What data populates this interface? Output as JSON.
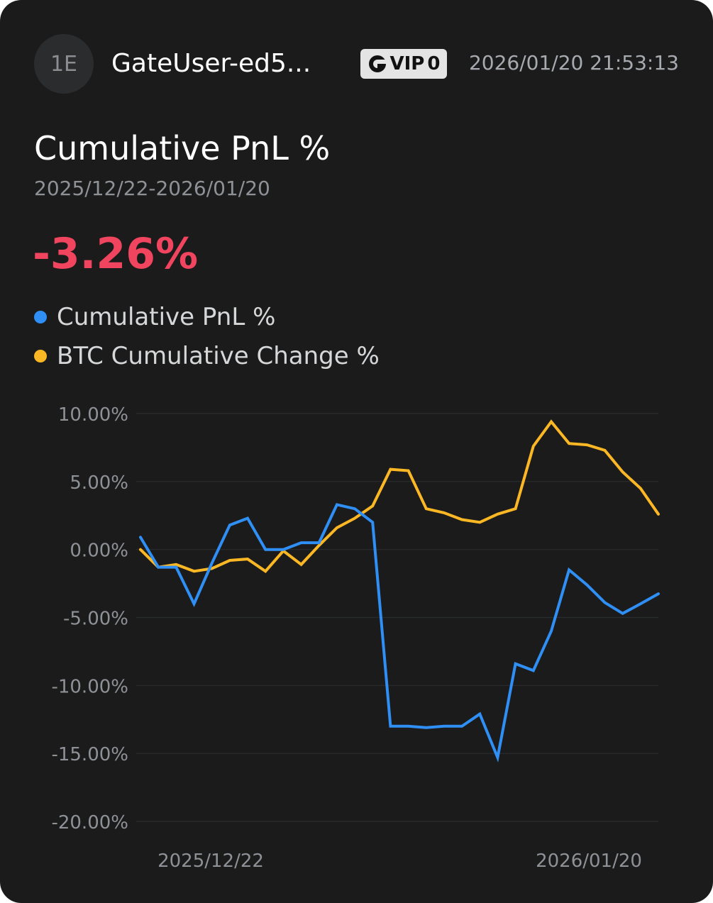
{
  "header": {
    "avatar_text": "1E",
    "username": "GateUser-ed5...",
    "vip_label": "VIP",
    "vip_level": "0",
    "timestamp": "2026/01/20 21:53:13"
  },
  "summary": {
    "title": "Cumulative PnL %",
    "date_range": "2025/12/22-2026/01/20",
    "value": "-3.26%"
  },
  "legend": [
    {
      "label": "Cumulative PnL %",
      "color": "#2f8ff5"
    },
    {
      "label": "BTC Cumulative Change %",
      "color": "#fbb724"
    }
  ],
  "chart_data": {
    "type": "line",
    "title": "Cumulative PnL %",
    "xlabel": "",
    "ylabel": "",
    "x_tick_labels": [
      "2025/12/22",
      "2026/01/20"
    ],
    "y_ticks": [
      10,
      5,
      0,
      -5,
      -10,
      -15,
      -20
    ],
    "y_tick_labels": [
      "10.00%",
      "5.00%",
      "0.00%",
      "-5.00%",
      "-10.00%",
      "-15.00%",
      "-20.00%"
    ],
    "ylim": [
      -20,
      10
    ],
    "grid": true,
    "x": [
      1,
      2,
      3,
      4,
      5,
      6,
      7,
      8,
      9,
      10,
      11,
      12,
      13,
      14,
      15,
      16,
      17,
      18,
      19,
      20,
      21,
      22,
      23,
      24,
      25,
      26,
      27,
      28,
      29,
      30
    ],
    "series": [
      {
        "name": "Cumulative PnL %",
        "color": "#2f8ff5",
        "values": [
          0.9,
          -1.3,
          -1.3,
          -4.0,
          -1.0,
          1.8,
          2.3,
          0.0,
          0.0,
          0.5,
          0.5,
          3.3,
          3.0,
          2.0,
          -13.0,
          -13.0,
          -13.1,
          -13.0,
          -13.0,
          -12.1,
          -15.3,
          -8.4,
          -8.9,
          -6.0,
          -1.5,
          -2.6,
          -3.9,
          -4.7,
          -4.0,
          -3.26
        ]
      },
      {
        "name": "BTC Cumulative Change %",
        "color": "#fbb724",
        "values": [
          0.0,
          -1.3,
          -1.1,
          -1.6,
          -1.4,
          -0.8,
          -0.7,
          -1.6,
          -0.1,
          -1.1,
          0.3,
          1.6,
          2.3,
          3.2,
          5.9,
          5.8,
          3.0,
          2.7,
          2.2,
          2.0,
          2.6,
          3.0,
          7.6,
          9.4,
          7.8,
          7.7,
          7.3,
          5.7,
          4.5,
          2.6
        ]
      }
    ]
  }
}
